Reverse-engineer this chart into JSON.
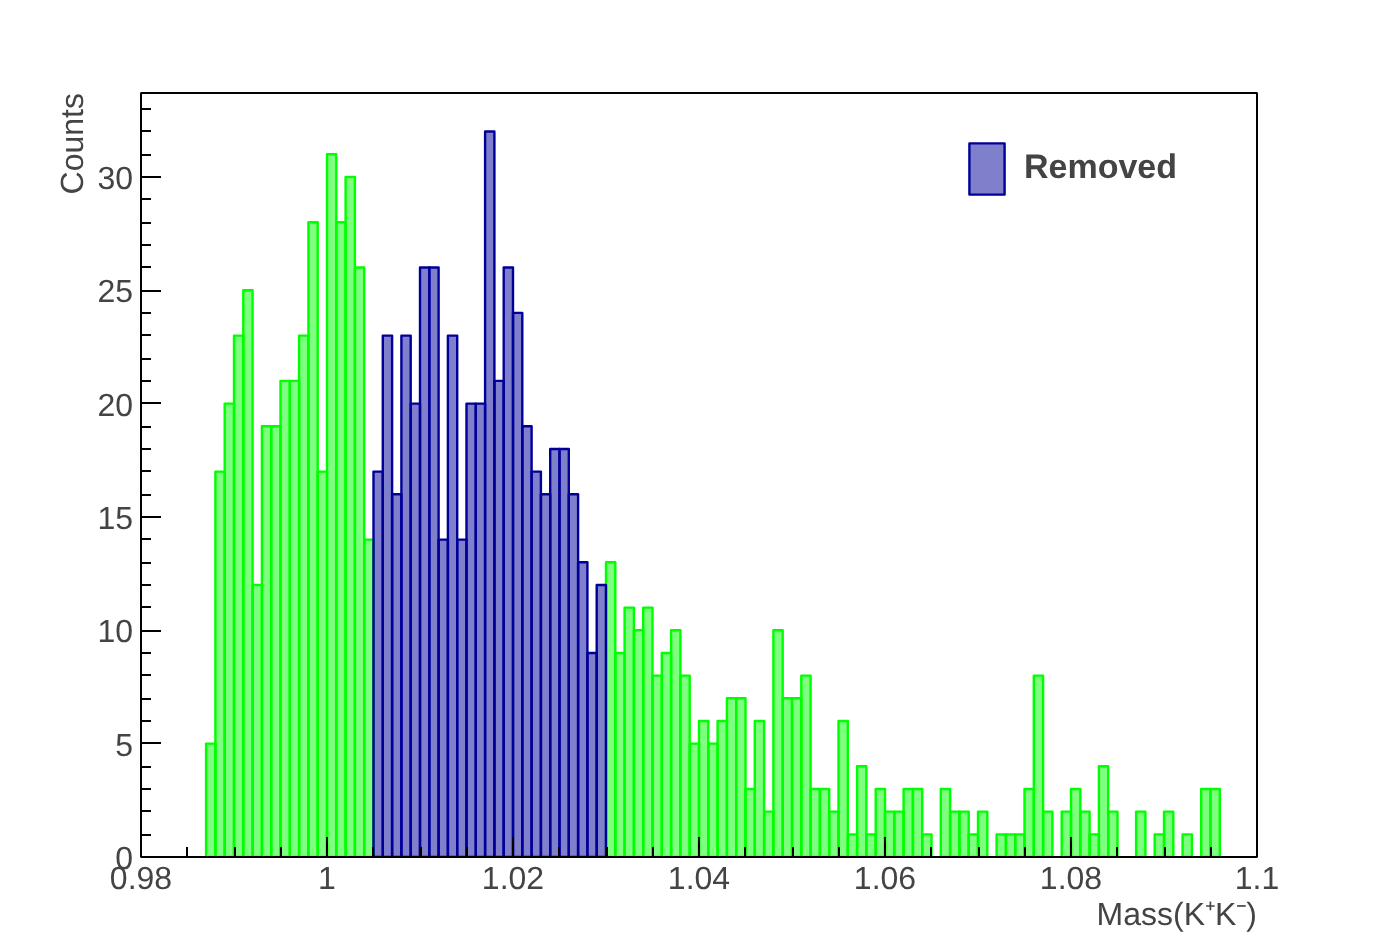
{
  "chart_data": {
    "type": "histogram",
    "xlabel": "Mass(K⁺K⁻)",
    "ylabel": "Counts",
    "bins": [
      0.98,
      0.981,
      0.982,
      0.983,
      0.984,
      0.985,
      0.986,
      0.987,
      0.988,
      0.989,
      0.99,
      0.991,
      0.992,
      0.993,
      0.994,
      0.995,
      0.996,
      0.997,
      0.998,
      0.999,
      1,
      1.001,
      1.002,
      1.003,
      1.004,
      1.005,
      1.006,
      1.007,
      1.008,
      1.009,
      1.01,
      1.011,
      1.012,
      1.013,
      1.014,
      1.015,
      1.016,
      1.017,
      1.018,
      1.019,
      1.02,
      1.021,
      1.022,
      1.023,
      1.024,
      1.025,
      1.026,
      1.027,
      1.028,
      1.029,
      1.03,
      1.031,
      1.032,
      1.033,
      1.034,
      1.035,
      1.036,
      1.037,
      1.038,
      1.039,
      1.04,
      1.041,
      1.042,
      1.043,
      1.044,
      1.045,
      1.046,
      1.047,
      1.048,
      1.049,
      1.05,
      1.051,
      1.052,
      1.053,
      1.054,
      1.055,
      1.056,
      1.057,
      1.058,
      1.059,
      1.06,
      1.061,
      1.062,
      1.063,
      1.064,
      1.065,
      1.066,
      1.067,
      1.068,
      1.069,
      1.07,
      1.071,
      1.072,
      1.073,
      1.074,
      1.075,
      1.076,
      1.077,
      1.078,
      1.079,
      1.08,
      1.081,
      1.082,
      1.083,
      1.084,
      1.085,
      1.086,
      1.087,
      1.088,
      1.089,
      1.09,
      1.091,
      1.092,
      1.093,
      1.094,
      1.095,
      1.096,
      1.097,
      1.098,
      1.099,
      1.1
    ],
    "series": [
      {
        "color": "#00ff00",
        "values": [
          0,
          0,
          0,
          0,
          0,
          0,
          0,
          5,
          17,
          20,
          23,
          25,
          12,
          19,
          19,
          21,
          21,
          23,
          28,
          17,
          31,
          28,
          30,
          26,
          14,
          null,
          null,
          null,
          null,
          null,
          null,
          null,
          null,
          null,
          null,
          null,
          null,
          null,
          null,
          null,
          null,
          null,
          null,
          null,
          null,
          null,
          null,
          null,
          null,
          null,
          13,
          9,
          11,
          10,
          11,
          8,
          9,
          10,
          8,
          5,
          6,
          5,
          6,
          7,
          7,
          3,
          6,
          2,
          10,
          7,
          7,
          8,
          3,
          3,
          2,
          6,
          1,
          4,
          1,
          3,
          2,
          2,
          3,
          3,
          1,
          0,
          3,
          2,
          2,
          1,
          2,
          0,
          1,
          1,
          1,
          3,
          8,
          2,
          0,
          2,
          3,
          2,
          1,
          4,
          2,
          0,
          0,
          2,
          0,
          1,
          2,
          0,
          1,
          0,
          3,
          3,
          0,
          0,
          0,
          0
        ]
      },
      {
        "name": "Removed",
        "color": "#000099",
        "values": [
          null,
          null,
          null,
          null,
          null,
          null,
          null,
          null,
          null,
          null,
          null,
          null,
          null,
          null,
          null,
          null,
          null,
          null,
          null,
          null,
          null,
          null,
          null,
          null,
          null,
          17,
          23,
          16,
          23,
          20,
          26,
          26,
          14,
          23,
          14,
          20,
          20,
          32,
          21,
          26,
          24,
          19,
          17,
          16,
          18,
          18,
          16,
          13,
          9,
          12,
          null,
          null,
          null,
          null,
          null,
          null,
          null,
          null,
          null,
          null,
          null,
          null,
          null,
          null,
          null,
          null,
          null,
          null,
          null,
          null,
          null,
          null,
          null,
          null,
          null,
          null,
          null,
          null,
          null,
          null,
          null,
          null,
          null,
          null,
          null,
          null,
          null,
          null,
          null,
          null,
          null,
          null,
          null,
          null,
          null,
          null,
          null,
          null,
          null,
          null,
          null,
          null,
          null,
          null,
          null,
          null,
          null,
          null,
          null,
          null,
          null,
          null,
          null,
          null,
          null,
          null,
          null,
          null,
          null,
          null
        ]
      }
    ],
    "xlim": [
      0.98,
      1.1
    ],
    "xticks": [
      0.98,
      1,
      1.02,
      1.04,
      1.06,
      1.08,
      1.1
    ],
    "ylim": [
      0,
      33.7
    ],
    "yticks": [
      0,
      5,
      10,
      15,
      20,
      25,
      30
    ],
    "legend": "top right"
  }
}
